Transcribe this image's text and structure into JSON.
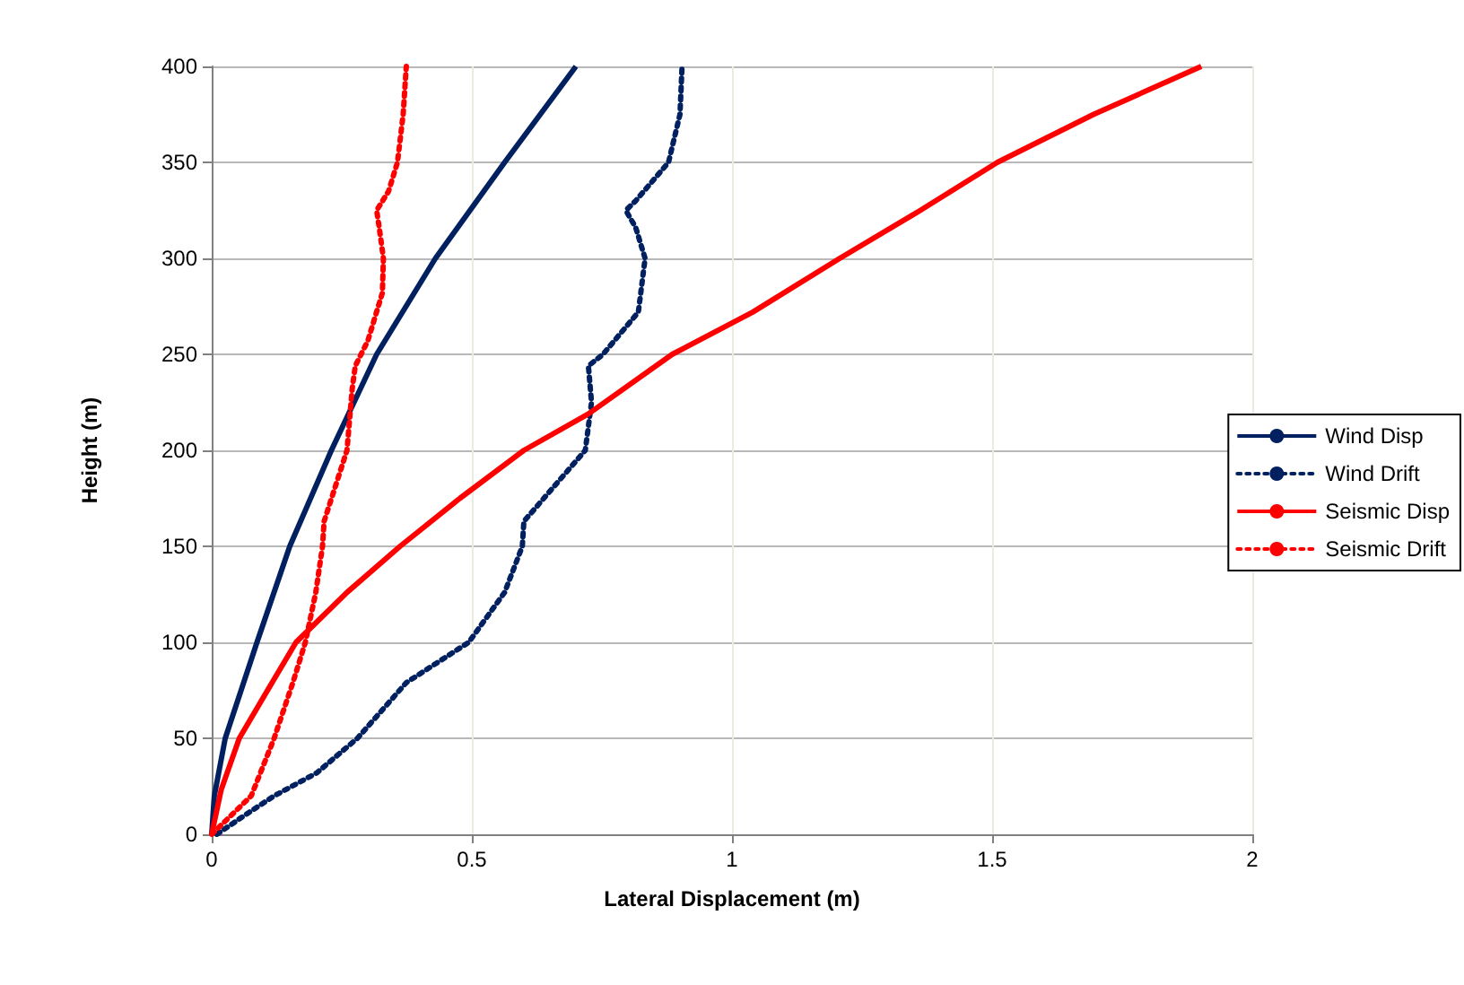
{
  "chart_data": {
    "type": "line",
    "xlabel": "Lateral Displacement (m)",
    "ylabel": "Height (m)",
    "xlim": [
      0,
      2
    ],
    "xticks": [
      0,
      0.5,
      1,
      1.5,
      2
    ],
    "ylim": [
      0,
      400
    ],
    "yticks": [
      0,
      50,
      100,
      150,
      200,
      250,
      300,
      350,
      400
    ],
    "grid": true,
    "legend": "right",
    "marker": "none",
    "series": [
      {
        "name": "Wind Disp",
        "color": "#002060",
        "line_style": "solid",
        "x": [
          0,
          0.005,
          0.026,
          0.087,
          0.15,
          0.23,
          0.317,
          0.43,
          0.563,
          0.7
        ],
        "values": [
          0,
          20,
          50,
          100,
          150,
          200,
          250,
          300,
          350,
          400
        ]
      },
      {
        "name": "Wind Drift",
        "color": "#002060",
        "line_style": "dotted",
        "x": [
          0.01,
          0.064,
          0.12,
          0.202,
          0.28,
          0.374,
          0.494,
          0.563,
          0.597,
          0.6,
          0.718,
          0.73,
          0.724,
          0.752,
          0.82,
          0.833,
          0.815,
          0.796,
          0.815,
          0.878,
          0.9,
          0.904
        ],
        "values": [
          0,
          10,
          20,
          32,
          50,
          79,
          100,
          126,
          150,
          163,
          200,
          225,
          244,
          250,
          272,
          300,
          316,
          325,
          330,
          350,
          375,
          400
        ]
      },
      {
        "name": "Seismic Disp",
        "color": "#ff0000",
        "line_style": "solid",
        "x": [
          0,
          0.018,
          0.053,
          0.116,
          0.162,
          0.26,
          0.362,
          0.477,
          0.6,
          0.724,
          0.885,
          1.04,
          1.207,
          1.362,
          1.51,
          1.695,
          1.902
        ],
        "values": [
          0,
          23,
          50,
          79,
          100,
          126,
          150,
          175,
          200,
          219,
          250,
          272,
          300,
          325,
          350,
          375,
          400
        ]
      },
      {
        "name": "Seismic Drift",
        "color": "#ff0000",
        "line_style": "dotted",
        "x": [
          0,
          0.076,
          0.12,
          0.156,
          0.18,
          0.2,
          0.213,
          0.216,
          0.26,
          0.27,
          0.276,
          0.3,
          0.328,
          0.33,
          0.322,
          0.317,
          0.34,
          0.357,
          0.368,
          0.374
        ],
        "values": [
          0,
          20,
          50,
          79,
          100,
          126,
          150,
          163,
          200,
          232,
          244,
          257,
          282,
          300,
          316,
          325,
          335,
          350,
          375,
          400
        ]
      }
    ]
  }
}
